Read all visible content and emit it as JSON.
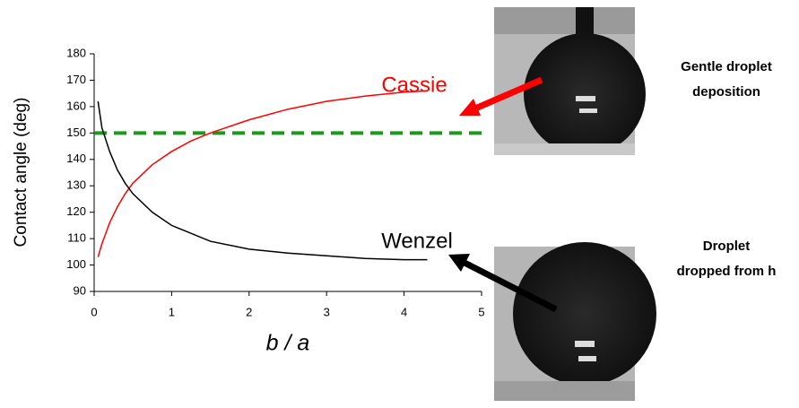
{
  "chart_data": {
    "type": "line",
    "ylabel": "Contact angle (deg)",
    "xlabel": "b / a",
    "xlim": [
      0,
      5
    ],
    "ylim": [
      90,
      180
    ],
    "xticks": [
      0,
      1,
      2,
      3,
      4,
      5
    ],
    "yticks": [
      90,
      100,
      110,
      120,
      130,
      140,
      150,
      160,
      170,
      180
    ],
    "series": [
      {
        "name": "Cassie",
        "color": "#ff0000",
        "x": [
          0.05,
          0.1,
          0.2,
          0.3,
          0.4,
          0.5,
          0.75,
          1,
          1.25,
          1.5,
          2,
          2.5,
          3,
          3.5,
          4,
          4.3
        ],
        "values": [
          103,
          108,
          116,
          122,
          127,
          131,
          138,
          143,
          147,
          150,
          155,
          159,
          162,
          164,
          165.5,
          166
        ]
      },
      {
        "name": "Wenzel",
        "color": "#000000",
        "x": [
          0.05,
          0.1,
          0.2,
          0.3,
          0.4,
          0.5,
          0.75,
          1,
          1.25,
          1.5,
          2,
          2.5,
          3,
          3.5,
          4,
          4.3
        ],
        "values": [
          162,
          152,
          143,
          136,
          131,
          127,
          120,
          115,
          112,
          109,
          106,
          104.5,
          103.5,
          102.5,
          102,
          102
        ]
      }
    ],
    "reference_line": {
      "value": 150,
      "color": "#1a9a1a"
    },
    "annotations": [
      {
        "lines": [
          "Gentle droplet",
          "deposition"
        ]
      },
      {
        "lines": [
          "Droplet",
          "dropped from h"
        ]
      }
    ]
  }
}
